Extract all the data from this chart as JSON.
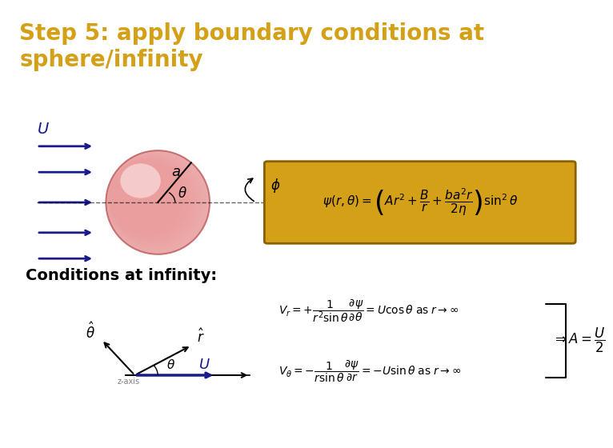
{
  "title": "Step 5: apply boundary conditions at\nsphere/infinity",
  "title_color": "#D4A017",
  "title_bg_color": "#1a1a1a",
  "bg_color": "#ffffff",
  "conditions_label": "Conditions at infinity:",
  "eq1_box_color": "#D4A017",
  "eq1_text": "$\\psi(r,\\theta) = \\left(Ar^2 + \\dfrac{B}{r} + \\dfrac{ba^2r}{2\\eta}\\right)\\sin^2\\theta$",
  "eq2_text": "$V_r = +\\dfrac{1}{r^2\\sin\\theta}\\dfrac{\\partial\\psi}{\\partial\\theta} = U\\cos\\theta \\;\\mathrm{as}\\; r\\rightarrow\\infty$",
  "eq3_text": "$V_\\theta = -\\dfrac{1}{r\\sin\\theta}\\dfrac{\\partial\\psi}{\\partial r} = -U\\sin\\theta \\;\\mathrm{as}\\; r\\rightarrow\\infty$",
  "eq4_text": "$\\Rightarrow A = \\dfrac{U}{2}$",
  "arrow_color": "#1a1a8c",
  "sphere_color_outer": "#e8a0a0",
  "sphere_color_inner": "#f5d0d0"
}
